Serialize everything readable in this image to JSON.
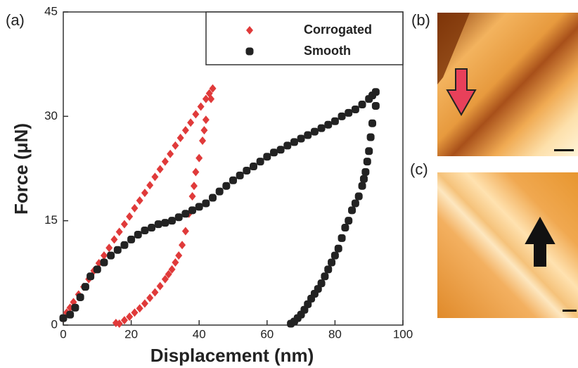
{
  "panel_labels": {
    "a": "(a)",
    "b": "(b)",
    "c": "(c)"
  },
  "chart_data": {
    "type": "scatter",
    "xlabel": "Displacement (nm)",
    "ylabel": "Force (μN)",
    "xlim": [
      0,
      100
    ],
    "ylim": [
      0,
      45
    ],
    "xticks": [
      0,
      20,
      40,
      60,
      80,
      100
    ],
    "yticks": [
      0,
      15,
      30,
      45
    ],
    "legend": "upper right",
    "series": [
      {
        "name": "Corrogated",
        "color": "#e03a3a",
        "marker": "diamond",
        "x": [
          0,
          1,
          2,
          3,
          4.5,
          6,
          7.5,
          9,
          10.5,
          12,
          13.5,
          15,
          16.5,
          18,
          19.5,
          21,
          22.5,
          24,
          25.5,
          27,
          28.5,
          30,
          31.5,
          33,
          34.5,
          36,
          37.5,
          39,
          40.5,
          42,
          43,
          44,
          43.5,
          42,
          41.5,
          41,
          40,
          39,
          38.5,
          38,
          37,
          36,
          35,
          34,
          33,
          32,
          31,
          30,
          28.5,
          27,
          25.5,
          24,
          22.5,
          21,
          19.5,
          18,
          16.5,
          15.5
        ],
        "values": [
          1,
          1.8,
          2.5,
          3.3,
          4.4,
          5.5,
          6.6,
          7.8,
          8.9,
          10,
          11.1,
          12.3,
          13.4,
          14.5,
          15.6,
          16.8,
          17.9,
          19,
          20.1,
          21.3,
          22.4,
          23.5,
          24.6,
          25.8,
          26.9,
          28,
          29.1,
          30.3,
          31.4,
          32.5,
          33.3,
          34,
          32.5,
          29.5,
          28,
          26.5,
          24,
          22,
          20,
          18.5,
          16,
          13.5,
          11.5,
          10,
          9,
          8,
          7.3,
          6.6,
          5.6,
          4.7,
          3.9,
          3.1,
          2.4,
          1.8,
          1.2,
          0.7,
          0.2,
          0.3
        ]
      },
      {
        "name": "Smooth",
        "color": "#222222",
        "marker": "square",
        "x": [
          0,
          2,
          3.5,
          5,
          6.5,
          8,
          10,
          12,
          14,
          16,
          18,
          20,
          22,
          24,
          26,
          28,
          30,
          32,
          34,
          36,
          38,
          40,
          42,
          44,
          46,
          48,
          50,
          52,
          54,
          56,
          58,
          60,
          62,
          64,
          66,
          68,
          70,
          72,
          74,
          76,
          78,
          80,
          82,
          84,
          86,
          88,
          90,
          91,
          92,
          92,
          91,
          90.5,
          90,
          89.5,
          89,
          88.5,
          88,
          87,
          86,
          85,
          84,
          83,
          82,
          81,
          80,
          79,
          78,
          77,
          76,
          75,
          74,
          73,
          72,
          71,
          70,
          69,
          68,
          67
        ],
        "values": [
          1,
          1.5,
          2.5,
          4,
          5.5,
          7,
          8,
          9,
          10,
          10.8,
          11.5,
          12.3,
          13,
          13.6,
          14,
          14.5,
          14.7,
          15,
          15.5,
          16,
          16.5,
          17,
          17.5,
          18.3,
          19.2,
          20,
          20.8,
          21.5,
          22.2,
          22.8,
          23.5,
          24.2,
          24.8,
          25.2,
          25.8,
          26.3,
          26.8,
          27.3,
          27.8,
          28.3,
          28.8,
          29.3,
          30,
          30.5,
          31,
          31.7,
          32.5,
          33,
          33.5,
          31.5,
          29,
          27,
          25,
          23.5,
          22,
          21,
          20,
          18.5,
          17.5,
          16.5,
          15,
          14,
          12.5,
          11,
          10,
          9,
          8,
          7,
          6,
          5.2,
          4.5,
          3.8,
          3,
          2.2,
          1.5,
          1,
          0.5,
          0.2
        ]
      }
    ]
  }
}
